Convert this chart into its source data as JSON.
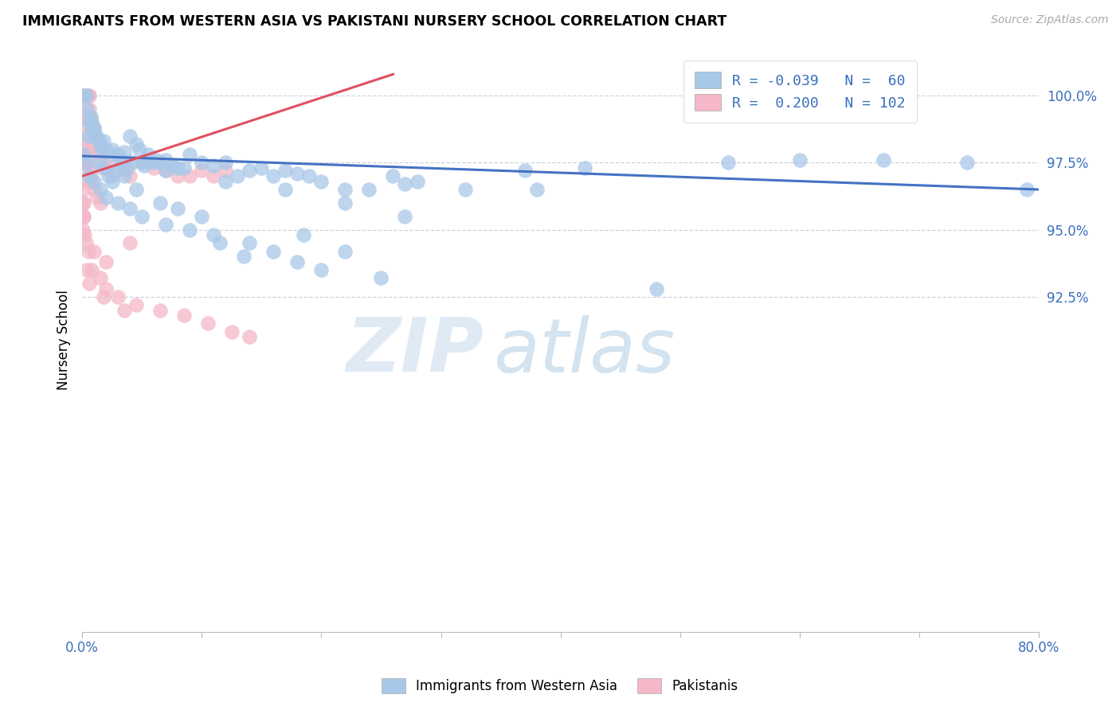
{
  "title": "IMMIGRANTS FROM WESTERN ASIA VS PAKISTANI NURSERY SCHOOL CORRELATION CHART",
  "source": "Source: ZipAtlas.com",
  "ylabel": "Nursery School",
  "xlim": [
    0.0,
    80.0
  ],
  "ylim": [
    80.0,
    101.8
  ],
  "x_ticks": [
    0.0,
    10.0,
    20.0,
    30.0,
    40.0,
    50.0,
    60.0,
    70.0,
    80.0
  ],
  "x_tick_labels": [
    "0.0%",
    "",
    "",
    "",
    "",
    "",
    "",
    "",
    "80.0%"
  ],
  "y_ticks": [
    92.5,
    95.0,
    97.5,
    100.0
  ],
  "y_tick_labels": [
    "92.5%",
    "95.0%",
    "97.5%",
    "100.0%"
  ],
  "blue_R": -0.039,
  "blue_N": 60,
  "pink_R": 0.2,
  "pink_N": 102,
  "blue_color": "#a8c8e8",
  "pink_color": "#f4b8c8",
  "blue_line_color": "#4472c4",
  "pink_line_color": "#e05060",
  "legend_label_blue": "Immigrants from Western Asia",
  "legend_label_pink": "Pakistanis",
  "watermark_zip": "ZIP",
  "watermark_atlas": "atlas",
  "blue_x": [
    0.2,
    0.3,
    0.5,
    0.8,
    1.0,
    1.2,
    1.5,
    1.8,
    2.0,
    2.5,
    3.0,
    3.5,
    4.0,
    4.5,
    5.0,
    5.5,
    6.0,
    7.0,
    8.0,
    9.0,
    10.0,
    11.0,
    12.0,
    13.0,
    14.0,
    15.0,
    16.0,
    17.0,
    18.0,
    19.0,
    20.0,
    22.0,
    24.0,
    26.0,
    28.0,
    18.5,
    22.0,
    1.3,
    1.7,
    2.2,
    2.8,
    3.2,
    3.8,
    4.2,
    5.2,
    6.5,
    7.5,
    8.5,
    0.4,
    0.6,
    0.9,
    1.1,
    1.4,
    1.6,
    0.7,
    2.3,
    3.3,
    4.8,
    6.2,
    27.0
  ],
  "blue_y": [
    100.0,
    100.0,
    98.5,
    99.0,
    98.8,
    98.5,
    98.2,
    98.3,
    98.0,
    98.0,
    97.8,
    97.9,
    98.5,
    98.2,
    97.5,
    97.8,
    97.5,
    97.6,
    97.3,
    97.8,
    97.5,
    97.4,
    97.5,
    97.0,
    97.2,
    97.3,
    97.0,
    97.2,
    97.1,
    97.0,
    96.8,
    96.5,
    96.5,
    97.0,
    96.8,
    94.8,
    94.2,
    97.5,
    97.3,
    97.0,
    97.2,
    97.4,
    97.3,
    97.5,
    97.4,
    97.5,
    97.4,
    97.3,
    99.5,
    99.0,
    98.7,
    98.5,
    98.3,
    98.0,
    99.2,
    97.8,
    97.6,
    98.0,
    97.6,
    96.7
  ],
  "blue_x2": [
    0.15,
    0.25,
    1.0,
    1.5,
    2.0,
    3.0,
    4.0,
    5.0,
    7.0,
    9.0,
    11.0,
    14.0,
    16.0,
    10.0,
    13.5,
    18.0,
    20.0,
    25.0,
    0.5,
    2.5,
    4.5,
    6.5,
    8.0,
    11.5,
    38.0,
    3.5,
    7.0,
    12.0,
    17.0,
    22.0,
    27.0,
    32.0,
    37.0,
    42.0,
    48.0,
    54.0,
    60.0,
    67.0,
    74.0,
    79.0
  ],
  "blue_y2": [
    97.8,
    97.5,
    96.8,
    96.5,
    96.2,
    96.0,
    95.8,
    95.5,
    95.2,
    95.0,
    94.8,
    94.5,
    94.2,
    95.5,
    94.0,
    93.8,
    93.5,
    93.2,
    97.0,
    96.8,
    96.5,
    96.0,
    95.8,
    94.5,
    96.5,
    97.0,
    97.2,
    96.8,
    96.5,
    96.0,
    95.5,
    96.5,
    97.2,
    97.3,
    92.8,
    97.5,
    97.6,
    97.6,
    97.5,
    96.5
  ],
  "pink_x": [
    0.05,
    0.05,
    0.05,
    0.05,
    0.05,
    0.05,
    0.05,
    0.05,
    0.05,
    0.05,
    0.1,
    0.1,
    0.1,
    0.1,
    0.1,
    0.15,
    0.15,
    0.15,
    0.2,
    0.2,
    0.2,
    0.2,
    0.2,
    0.25,
    0.25,
    0.3,
    0.3,
    0.3,
    0.35,
    0.35,
    0.4,
    0.4,
    0.5,
    0.5,
    0.6,
    0.6,
    0.7,
    0.8,
    0.9,
    1.0,
    1.0,
    1.2,
    1.3,
    1.5,
    1.8,
    2.0,
    2.5,
    3.0,
    3.5,
    4.0,
    5.0,
    6.0,
    7.0,
    8.0,
    9.0,
    10.0,
    11.0,
    12.0,
    0.15,
    0.2,
    0.25,
    0.3,
    0.35,
    0.4,
    0.5,
    0.6,
    0.7,
    0.8,
    1.0,
    1.2,
    1.5,
    0.05,
    0.05,
    0.05,
    0.05,
    0.05,
    0.1,
    0.1,
    0.1,
    0.15,
    0.2,
    0.3,
    0.5,
    0.8,
    1.5,
    2.0,
    3.0,
    4.5,
    6.5,
    8.5,
    10.5,
    12.5,
    14.0,
    4.0,
    1.0,
    2.0,
    0.4,
    0.6,
    1.8,
    3.5,
    0.08,
    0.12
  ],
  "pink_y": [
    100.0,
    100.0,
    100.0,
    100.0,
    100.0,
    100.0,
    100.0,
    100.0,
    100.0,
    100.0,
    100.0,
    100.0,
    100.0,
    100.0,
    100.0,
    100.0,
    100.0,
    100.0,
    100.0,
    100.0,
    100.0,
    100.0,
    100.0,
    100.0,
    100.0,
    100.0,
    100.0,
    100.0,
    100.0,
    100.0,
    100.0,
    100.0,
    100.0,
    100.0,
    100.0,
    99.5,
    99.2,
    99.0,
    98.8,
    98.5,
    98.8,
    98.2,
    98.0,
    97.8,
    97.5,
    97.3,
    97.0,
    97.5,
    97.2,
    97.0,
    97.5,
    97.3,
    97.2,
    97.0,
    97.0,
    97.2,
    97.0,
    97.2,
    99.2,
    99.0,
    98.5,
    98.2,
    98.0,
    97.8,
    97.5,
    97.3,
    97.0,
    96.8,
    96.5,
    96.2,
    96.0,
    97.5,
    96.8,
    96.0,
    95.5,
    95.0,
    96.5,
    96.0,
    95.5,
    95.5,
    94.8,
    94.5,
    94.2,
    93.5,
    93.2,
    92.8,
    92.5,
    92.2,
    92.0,
    91.8,
    91.5,
    91.2,
    91.0,
    94.5,
    94.2,
    93.8,
    93.5,
    93.0,
    92.5,
    92.0,
    97.8,
    97.5
  ]
}
